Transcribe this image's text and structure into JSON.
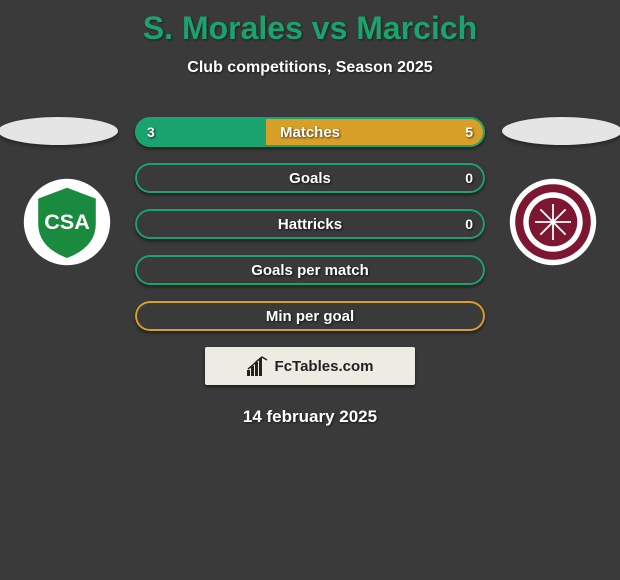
{
  "title": {
    "player1": "S. Morales",
    "vs": "vs",
    "player2": "Marcich",
    "color": "#1aa36e"
  },
  "subtitle": "Club competitions, Season 2025",
  "date": "14 february 2025",
  "team1": {
    "crest_bg": "#ffffff",
    "crest_main": "#1a8a3e",
    "crest_letters": "CSA"
  },
  "team2": {
    "crest_bg": "#ffffff",
    "crest_main": "#7d1731",
    "crest_letters": ""
  },
  "watermark": "FcTables.com",
  "colors": {
    "player1_bar": "#1aa36e",
    "player2_bar": "#d8a028",
    "border_green": "#1aa36e",
    "border_gold": "#d8a028",
    "background": "#3a3a3a"
  },
  "stats": [
    {
      "label": "Matches",
      "left_val": "3",
      "right_val": "5",
      "left_pct": 37.5,
      "right_pct": 62.5,
      "show_vals": true,
      "border_color": "#1aa36e"
    },
    {
      "label": "Goals",
      "left_val": "",
      "right_val": "0",
      "left_pct": 0,
      "right_pct": 0,
      "show_vals": false,
      "show_right_val": true,
      "border_color": "#1aa36e"
    },
    {
      "label": "Hattricks",
      "left_val": "",
      "right_val": "0",
      "left_pct": 0,
      "right_pct": 0,
      "show_vals": false,
      "show_right_val": true,
      "border_color": "#1aa36e"
    },
    {
      "label": "Goals per match",
      "left_val": "",
      "right_val": "",
      "left_pct": 0,
      "right_pct": 0,
      "show_vals": false,
      "border_color": "#1aa36e"
    },
    {
      "label": "Min per goal",
      "left_val": "",
      "right_val": "",
      "left_pct": 0,
      "right_pct": 0,
      "show_vals": false,
      "border_color": "#d8a028"
    }
  ]
}
